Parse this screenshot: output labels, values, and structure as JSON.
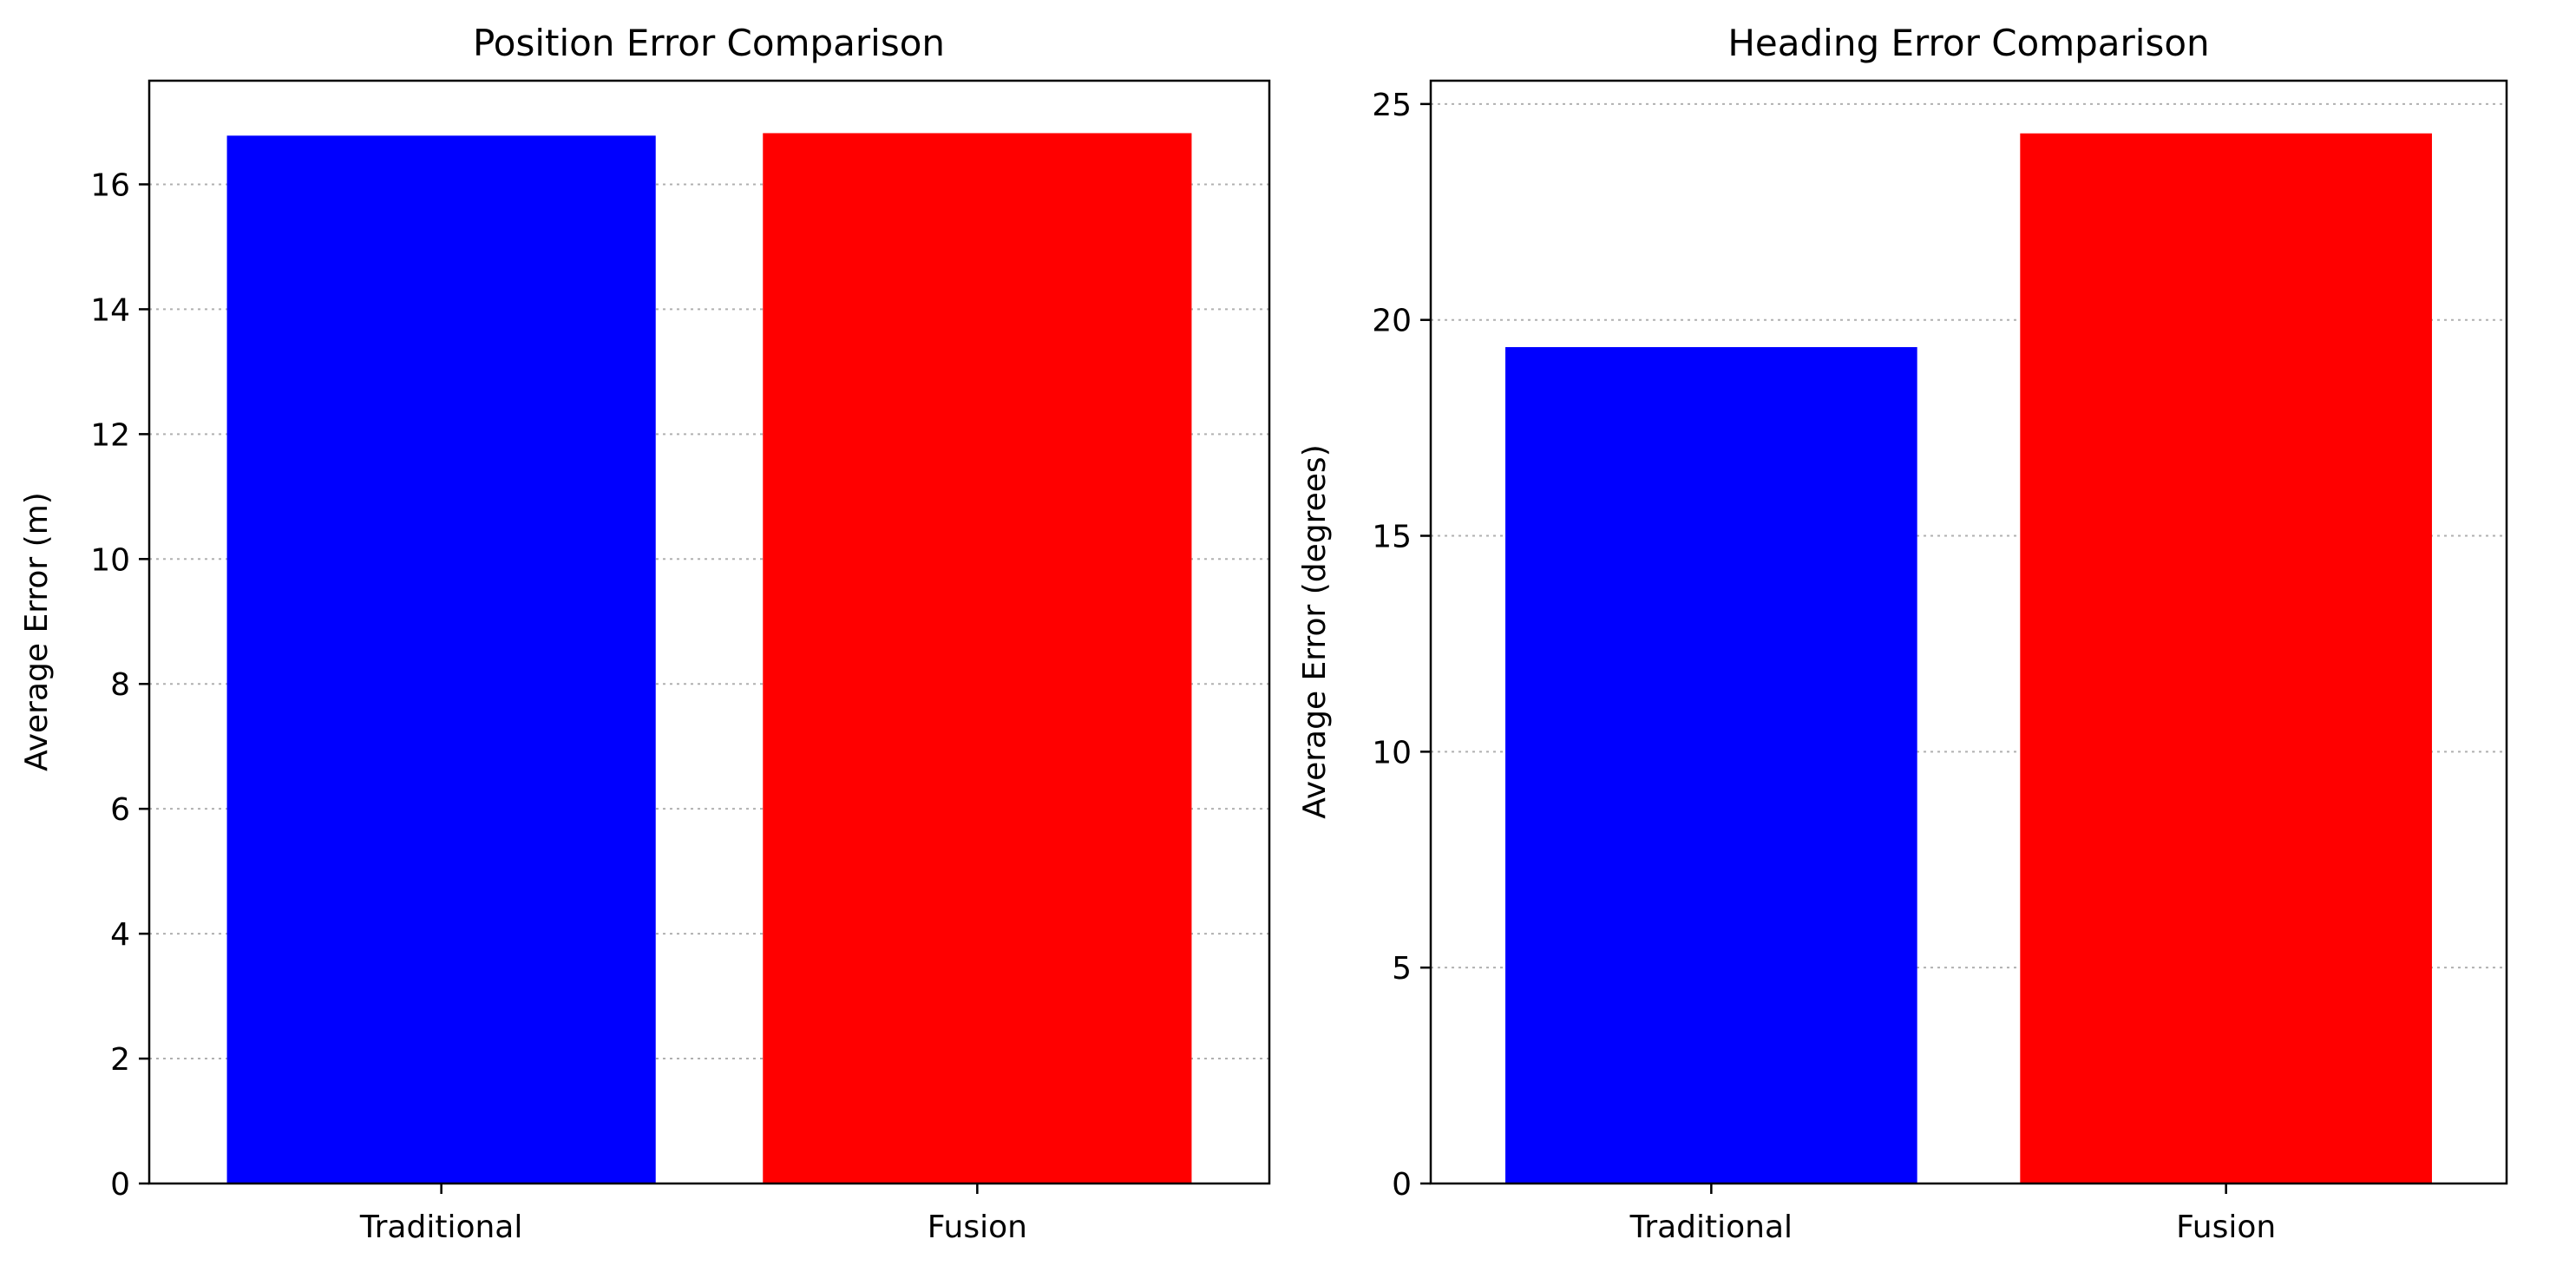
{
  "chart_data": [
    {
      "type": "bar",
      "title": "Position Error Comparison",
      "xlabel": "",
      "ylabel": "Average Error (m)",
      "categories": [
        "Traditional",
        "Fusion"
      ],
      "values": [
        16.78,
        16.82
      ],
      "colors": [
        "#0000ff",
        "#ff0000"
      ],
      "ylim": [
        0,
        17.66
      ],
      "yticks": [
        0,
        2,
        4,
        6,
        8,
        10,
        12,
        14,
        16
      ],
      "grid": "y, dotted",
      "legend": "none"
    },
    {
      "type": "bar",
      "title": "Heading Error Comparison",
      "xlabel": "",
      "ylabel": "Average Error (degrees)",
      "categories": [
        "Traditional",
        "Fusion"
      ],
      "values": [
        19.37,
        24.32
      ],
      "colors": [
        "#0000ff",
        "#ff0000"
      ],
      "ylim": [
        0,
        25.54
      ],
      "yticks": [
        0,
        5,
        10,
        15,
        20,
        25
      ],
      "grid": "y, dotted",
      "legend": "none"
    }
  ]
}
